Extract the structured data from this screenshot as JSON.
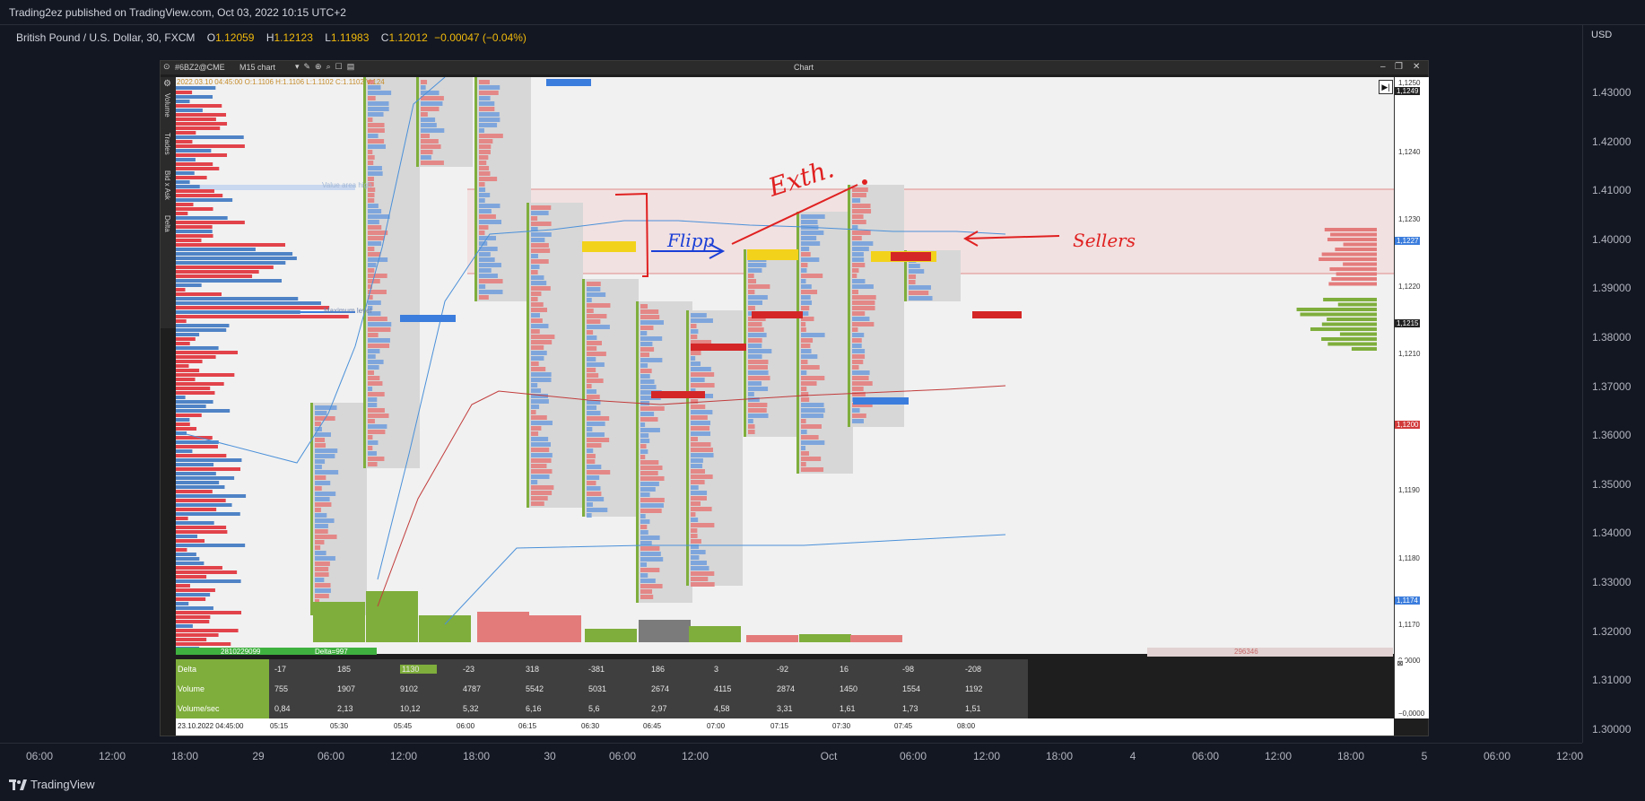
{
  "header": {
    "published": "Trading2ez published on TradingView.com, Oct 03, 2022 10:15 UTC+2"
  },
  "legend": {
    "symbol": "British Pound / U.S. Dollar, 30, FXCM",
    "o_lbl": "O",
    "o": "1.12059",
    "h_lbl": "H",
    "h": "1.12123",
    "l_lbl": "L",
    "l": "1.11983",
    "c_lbl": "C",
    "c": "1.12012",
    "change": "−0.00047 (−0.04%)"
  },
  "price_axis": {
    "currency": "USD",
    "ticks": [
      "1.43000",
      "1.42000",
      "1.41000",
      "1.40000",
      "1.39000",
      "1.38000",
      "1.37000",
      "1.36000",
      "1.35000",
      "1.34000",
      "1.33000",
      "1.32000",
      "1.31000",
      "1.30000"
    ]
  },
  "time_axis": {
    "ticks": [
      "06:00",
      "12:00",
      "18:00",
      "29",
      "06:00",
      "12:00",
      "18:00",
      "30",
      "06:00",
      "12:00",
      "Oct",
      "06:00",
      "12:00",
      "18:00",
      "4",
      "06:00",
      "12:00",
      "18:00",
      "5",
      "06:00",
      "12:00"
    ]
  },
  "brand": "TradingView",
  "window": {
    "symbol": "#6BZ2@CME",
    "template": "M15 chart",
    "title": "Chart",
    "ohlc_line": "2022.03.10 04:45:00 O:1.1106 H:1.1106 L:1.1102 C:1.1102 V:124",
    "side_tabs": [
      "Volume",
      "Trades",
      "Bid x Ask",
      "Delta"
    ],
    "value_area_high": "Value area high",
    "maximum_level": "Maximum level",
    "price_labels": [
      "1,1250",
      "1,1240",
      "1,1230",
      "1,1220",
      "1,1210",
      "1,1190",
      "1,1180",
      "1,1170",
      "0,0000",
      "−0,0000"
    ],
    "price_tags": [
      {
        "text": "1,1249",
        "color": "#222222"
      },
      {
        "text": "1,1227",
        "color": "#3b7ddd"
      },
      {
        "text": "1,1215",
        "color": "#222222"
      },
      {
        "text": "1,1200",
        "color": "#d23a3a"
      },
      {
        "text": "1,1174",
        "color": "#3b7ddd"
      }
    ],
    "delta_bar": "2810229099",
    "delta_bar_2": "Delta=997",
    "total_volume": "296346",
    "stats": {
      "labels": [
        "Delta",
        "Volume",
        "Volume/sec"
      ],
      "delta": [
        "-17",
        "185",
        "1130",
        "-23",
        "318",
        "-381",
        "186",
        "3",
        "-92",
        "16",
        "-98",
        "-208"
      ],
      "volume": [
        "755",
        "1907",
        "9102",
        "4787",
        "5542",
        "5031",
        "2674",
        "4115",
        "2874",
        "1450",
        "1554",
        "1192"
      ],
      "volume_sec": [
        "0,84",
        "2,13",
        "10,12",
        "5,32",
        "6,16",
        "5,6",
        "2,97",
        "4,58",
        "3,31",
        "1,61",
        "1,73",
        "1,51"
      ]
    },
    "time_labels": [
      "23.10.2022 04:45:00",
      "05:15",
      "05:30",
      "05:45",
      "06:00",
      "06:15",
      "06:30",
      "06:45",
      "07:00",
      "07:15",
      "07:30",
      "07:45",
      "08:00"
    ]
  },
  "annotations": {
    "flipp": "Flipp",
    "exth": "Exth.",
    "sellers": "Sellers"
  },
  "colors": {
    "buy": "#4f83c6",
    "sell": "#e2434b",
    "volume_green": "#7fae3c",
    "ink": "#e02020",
    "highlight": "#f3d21b"
  }
}
